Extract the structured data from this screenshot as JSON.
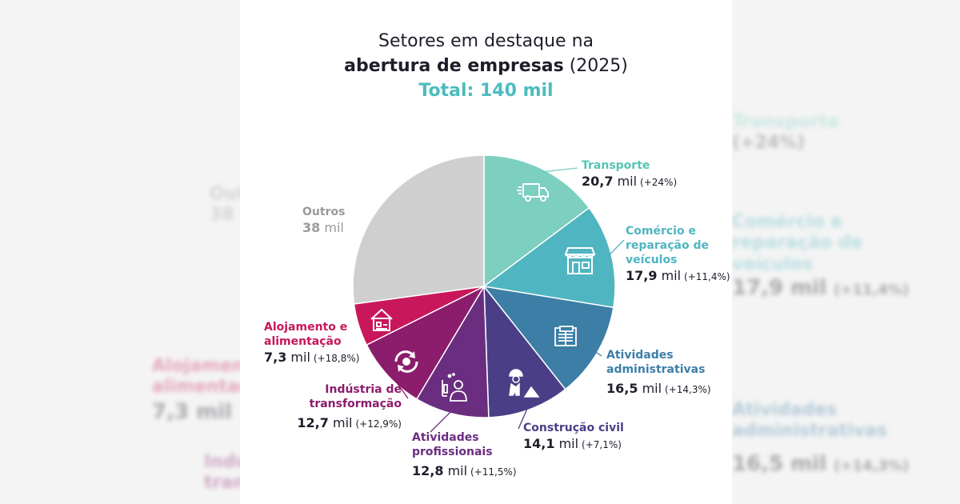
{
  "title": {
    "line1": "Setores em destaque na",
    "line2_bold": "abertura de empresas",
    "line2_rest": " (2025)",
    "total": "Total: 140 mil"
  },
  "colors": {
    "title": "#1e1e2a",
    "total": "#4cbcbf"
  },
  "chart_data": {
    "type": "pie",
    "title": "Setores em destaque na abertura de empresas (2025)",
    "subtitle": "Total: 140 mil",
    "unit": "mil",
    "slices": [
      {
        "name": "Transporte",
        "value": 20.7,
        "value_label": "20,7",
        "change": "(+24%)",
        "color": "#7dcfc0",
        "icon": "truck-icon"
      },
      {
        "name": "Comércio e reparação de veículos",
        "value": 17.9,
        "value_label": "17,9",
        "change": "(+11,4%)",
        "color": "#4fb5c0",
        "icon": "store-icon"
      },
      {
        "name": "Atividades administrativas",
        "value": 16.5,
        "value_label": "16,5",
        "change": "(+14,3%)",
        "color": "#3c7ea6",
        "icon": "documents-icon"
      },
      {
        "name": "Construção civil",
        "value": 14.1,
        "value_label": "14,1",
        "change": "(+7,1%)",
        "color": "#4a3f86",
        "icon": "construction-worker-icon"
      },
      {
        "name": "Atividades profissionais",
        "value": 12.8,
        "value_label": "12,8",
        "change": "(+11,5%)",
        "color": "#6a2d80",
        "icon": "scientist-icon"
      },
      {
        "name": "Indústria de transformação",
        "value": 12.7,
        "value_label": "12,7",
        "change": "(+12,9%)",
        "color": "#8c1c6c",
        "icon": "cycle-icon"
      },
      {
        "name": "Alojamento e alimentação",
        "value": 7.3,
        "value_label": "7,3",
        "change": "(+18,8%)",
        "color": "#c8175a",
        "icon": "house-icon"
      },
      {
        "name": "Outros",
        "value": 38,
        "value_label": "38",
        "change": "",
        "color": "#cfcfcf",
        "icon": ""
      }
    ]
  },
  "labels": {
    "transporte": {
      "name": "Transporte",
      "num": "20,7",
      "unit": " mil",
      "chg": "(+24%)"
    },
    "comercio": {
      "name1": "Comércio e",
      "name2": "reparação de",
      "name3": "veículos",
      "num": "17,9",
      "unit": " mil",
      "chg": "(+11,4%)"
    },
    "administrativas": {
      "name1": "Atividades",
      "name2": "administrativas",
      "num": "16,5",
      "unit": " mil",
      "chg": "(+14,3%)"
    },
    "construcao": {
      "name": "Construção civil",
      "num": "14,1",
      "unit": " mil",
      "chg": "(+7,1%)"
    },
    "profissionais": {
      "name1": "Atividades",
      "name2": "profissionais",
      "num": "12,8",
      "unit": " mil",
      "chg": "(+11,5%)"
    },
    "industria": {
      "name1": "Indústria de",
      "name2": "transformação",
      "num": "12,7",
      "unit": " mil",
      "chg": "(+12,9%)"
    },
    "alojamento": {
      "name1": "Alojamento e",
      "name2": "alimentação",
      "num": "7,3",
      "unit": " mil",
      "chg": "(+18,8%)"
    },
    "outros": {
      "name": "Outros",
      "num": "38",
      "unit": " mil"
    }
  }
}
